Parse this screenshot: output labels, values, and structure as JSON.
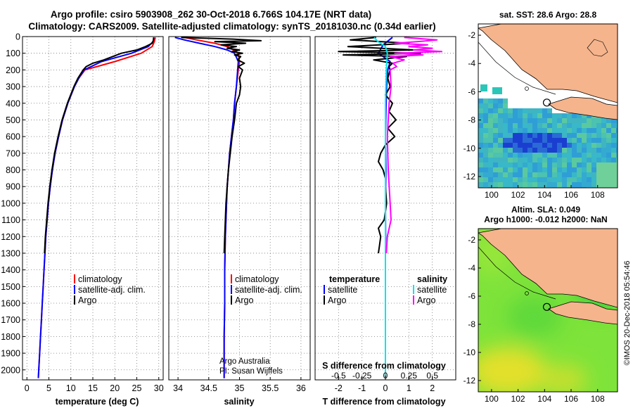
{
  "header": {
    "line1": "Argo profile: csiro 5903908_262 30-Oct-2018 6.766S 104.17E (NRT data)",
    "line2": "Climatology: CARS2009. Satellite-adjusted climatology: synTS_20181030.nc (0.34d earlier)"
  },
  "side_label": "©IMOS 20-Dec-2018 05:54:46",
  "colors": {
    "climatology": "#ff0000",
    "satellite": "#0000ff",
    "argo": "#000000",
    "sat_salinity": "#00e5ee",
    "argo_salinity": "#ff00ff",
    "land": "#f5b48c"
  },
  "chart_data": [
    {
      "id": "temperature",
      "type": "line",
      "xlabel": "temperature (deg C)",
      "ylabel": "",
      "xlim": [
        -1,
        31
      ],
      "ylim": [
        2060,
        0
      ],
      "xticks": [
        0,
        5,
        10,
        15,
        20,
        25,
        30
      ],
      "yticks": [
        0,
        100,
        200,
        300,
        400,
        500,
        600,
        700,
        800,
        900,
        1000,
        1100,
        1200,
        1300,
        1400,
        1500,
        1600,
        1700,
        1800,
        1900,
        2000
      ],
      "legend": [
        "climatology",
        "satellite-adj. clim.",
        "Argo"
      ],
      "series": [
        {
          "name": "climatology",
          "color": "#ff0000",
          "depth": [
            5,
            30,
            60,
            100,
            150,
            200,
            250,
            300,
            400,
            500,
            600,
            700,
            800,
            900,
            1000,
            1100,
            1200,
            1300,
            1400,
            1500,
            1600,
            1700,
            1800,
            1900,
            2000,
            2050
          ],
          "values": [
            29.2,
            29.0,
            28.5,
            26.0,
            20.0,
            13.2,
            11.8,
            10.8,
            9.3,
            8.1,
            7.2,
            6.4,
            5.8,
            5.3,
            4.9,
            4.6,
            4.3,
            4.1,
            3.9,
            3.7,
            3.5,
            3.3,
            3.1,
            2.9,
            2.7,
            2.6
          ]
        },
        {
          "name": "satellite-adj. clim.",
          "color": "#0000ff",
          "depth": [
            5,
            30,
            60,
            100,
            150,
            200,
            250,
            300,
            400,
            500,
            600,
            700,
            800,
            900,
            1000,
            1100,
            1200,
            1300,
            1400,
            1500,
            1600,
            1700,
            1800,
            1900,
            2000,
            2050
          ],
          "values": [
            28.9,
            28.7,
            27.6,
            23.8,
            17.0,
            13.0,
            11.8,
            10.8,
            9.3,
            8.1,
            7.2,
            6.4,
            5.8,
            5.3,
            4.9,
            4.6,
            4.3,
            4.1,
            3.9,
            3.7,
            3.5,
            3.3,
            3.1,
            2.9,
            2.7,
            2.6
          ]
        },
        {
          "name": "Argo",
          "color": "#000000",
          "depth": [
            5,
            20,
            40,
            60,
            80,
            100,
            120,
            140,
            160,
            180,
            200,
            250,
            300,
            400,
            500,
            600,
            700,
            800,
            900,
            1000,
            1100,
            1200,
            1300
          ],
          "values": [
            28.8,
            28.8,
            28.5,
            27.0,
            25.0,
            21.5,
            19.5,
            17.5,
            15.0,
            13.5,
            12.8,
            11.6,
            10.7,
            9.2,
            8.0,
            7.1,
            6.3,
            5.7,
            5.2,
            4.8,
            4.5,
            4.2,
            4.0
          ]
        }
      ]
    },
    {
      "id": "salinity",
      "type": "line",
      "xlabel": "salinity",
      "xlim": [
        33.85,
        36.15
      ],
      "ylim": [
        2060,
        0
      ],
      "xticks": [
        34,
        34.5,
        35,
        35.5,
        36
      ],
      "xticklabels": [
        "34",
        "34.5",
        "35",
        "35.5",
        "36"
      ],
      "legend": [
        "climatology",
        "satellite-adj. clim.",
        "Argo"
      ],
      "annotations": [
        "Argo Australia",
        "PI: Susan Wijffels"
      ],
      "series": [
        {
          "name": "climatology",
          "color": "#ff0000",
          "depth": [
            5,
            20,
            40,
            60,
            80,
            100,
            150,
            200,
            300,
            400,
            500,
            600,
            700,
            800,
            900,
            1000,
            1200,
            1400,
            1600,
            1800,
            2000,
            2050
          ],
          "values": [
            34.1,
            34.3,
            34.6,
            34.8,
            34.9,
            34.98,
            35.0,
            34.98,
            34.95,
            34.92,
            34.9,
            34.87,
            34.84,
            34.82,
            34.8,
            34.79,
            34.77,
            34.76,
            34.76,
            34.75,
            34.75,
            34.75
          ]
        },
        {
          "name": "satellite-adj. clim.",
          "color": "#0000ff",
          "depth": [
            5,
            20,
            40,
            60,
            80,
            100,
            150,
            200,
            300,
            400,
            500,
            600,
            700,
            800,
            900,
            1000,
            1200,
            1400,
            1600,
            1800,
            2000,
            2050
          ],
          "values": [
            33.95,
            34.1,
            34.35,
            34.6,
            34.8,
            34.92,
            34.98,
            34.97,
            34.95,
            34.92,
            34.9,
            34.87,
            34.84,
            34.82,
            34.8,
            34.79,
            34.77,
            34.76,
            34.76,
            34.75,
            34.75,
            34.75
          ]
        },
        {
          "name": "Argo",
          "color": "#000000",
          "depth": [
            5,
            15,
            25,
            30,
            40,
            50,
            60,
            70,
            80,
            90,
            100,
            110,
            120,
            140,
            160,
            180,
            200,
            250,
            300,
            350,
            400,
            500,
            600,
            700,
            800,
            900,
            1000,
            1100,
            1200,
            1300
          ],
          "values": [
            34.05,
            34.9,
            35.35,
            34.6,
            35.1,
            34.7,
            34.95,
            34.8,
            35.0,
            34.88,
            35.05,
            34.92,
            35.02,
            34.97,
            35.08,
            34.98,
            35.05,
            35.0,
            35.02,
            35.0,
            34.95,
            34.92,
            34.88,
            34.85,
            34.82,
            34.8,
            34.78,
            34.77,
            34.76,
            34.75
          ]
        }
      ]
    },
    {
      "id": "difference",
      "type": "line",
      "xlabel": "T difference from climatology",
      "xlabel_top": "S difference from climatology",
      "xlim": [
        -3,
        3
      ],
      "ylim": [
        2060,
        0
      ],
      "xticks": [
        -2,
        -1,
        0,
        1,
        2
      ],
      "top_ticks": [
        -0.5,
        -0.25,
        0,
        0.25,
        0.5
      ],
      "top_ticklabels": [
        "-0.5",
        "-0.25",
        "0",
        "0.25",
        "0.5"
      ],
      "legend_left_title": "temperature",
      "legend_right_title": "salinity",
      "legend": [
        "satellite",
        "Argo",
        "satellite",
        "Argo"
      ],
      "series": [
        {
          "name": "T satellite",
          "color": "#0000ff",
          "depth": [
            5,
            50,
            100,
            150,
            200,
            300,
            400,
            600,
            800,
            1000,
            1200,
            1300
          ],
          "values": [
            0.3,
            -0.1,
            -0.3,
            0.2,
            0.1,
            0.05,
            0.03,
            0.0,
            0.02,
            0.0,
            0.01,
            0.0
          ]
        },
        {
          "name": "T Argo",
          "color": "#000000",
          "depth": [
            5,
            20,
            40,
            60,
            80,
            90,
            100,
            110,
            120,
            140,
            160,
            180,
            200,
            250,
            300,
            350,
            400,
            450,
            500,
            550,
            600,
            650,
            700,
            750,
            800,
            850,
            900,
            1000,
            1100,
            1150,
            1200,
            1250,
            1300
          ],
          "values": [
            -0.4,
            -1.5,
            1.0,
            -1.6,
            1.2,
            -2.0,
            1.5,
            -1.8,
            0.9,
            -0.5,
            0.3,
            0.15,
            0.2,
            0.1,
            0.2,
            0.0,
            0.3,
            0.15,
            0.45,
            0.1,
            0.4,
            0.0,
            -0.2,
            -0.3,
            -0.1,
            0.0,
            0.0,
            0.05,
            -0.05,
            -0.3,
            -0.2,
            -0.25,
            -0.3
          ]
        },
        {
          "name": "S satellite",
          "color": "#00e5ee",
          "depth": [
            5,
            30,
            60,
            100,
            200,
            400,
            800,
            1200,
            1600,
            2000,
            2050
          ],
          "values": [
            -0.12,
            -0.08,
            0.0,
            0.02,
            0.01,
            0.0,
            0.0,
            0.0,
            0.0,
            0.0,
            0.0
          ]
        },
        {
          "name": "S Argo",
          "color": "#ff00ff",
          "depth": [
            5,
            20,
            30,
            40,
            50,
            60,
            70,
            80,
            90,
            100,
            110,
            120,
            140,
            160,
            180,
            200,
            300,
            400,
            600,
            800,
            1000,
            1100,
            1200,
            1300
          ],
          "values": [
            0.2,
            0.55,
            0.35,
            0.1,
            0.45,
            0.25,
            0.5,
            0.3,
            0.6,
            0.1,
            0.4,
            0.05,
            0.2,
            0.08,
            0.12,
            0.05,
            0.06,
            0.04,
            0.02,
            0.03,
            0.05,
            0.06,
            0.02,
            0.01
          ]
        }
      ]
    },
    {
      "id": "sst_map",
      "type": "heatmap",
      "title": "sat. SST: 28.6 Argo: 28.8",
      "xlim": [
        99,
        109.5
      ],
      "ylim": [
        -12.8,
        -1.2
      ],
      "xticks": [
        100,
        102,
        104,
        106,
        108
      ],
      "yticks": [
        -2,
        -4,
        -6,
        -8,
        -10,
        -12
      ],
      "float_position": [
        104.17,
        -6.766
      ]
    },
    {
      "id": "sla_map",
      "type": "heatmap",
      "title_line1": "Altim. SLA: 0.049",
      "title_line2": "Argo h1000: -0.012 h2000: NaN",
      "xlim": [
        99,
        109.5
      ],
      "ylim": [
        -12.8,
        -1.2
      ],
      "xticks": [
        100,
        102,
        104,
        106,
        108
      ],
      "yticks": [
        -2,
        -4,
        -6,
        -8,
        -10,
        -12
      ],
      "float_position": [
        104.17,
        -6.766
      ]
    }
  ]
}
